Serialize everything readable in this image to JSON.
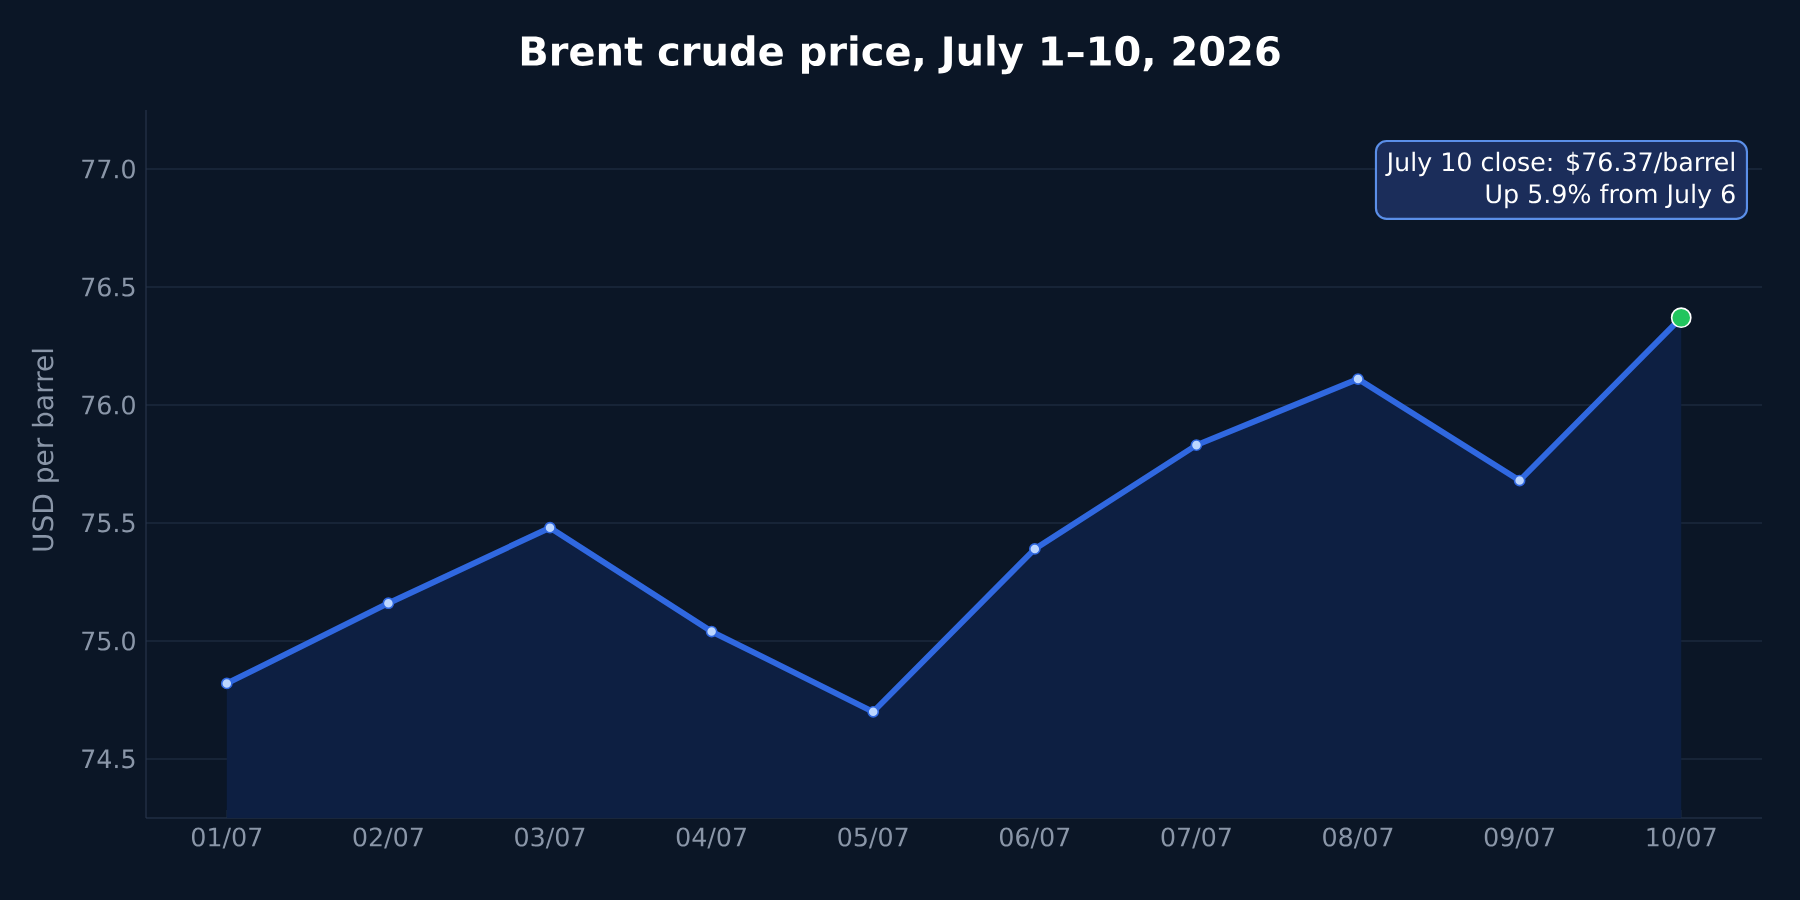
{
  "chart_data": {
    "type": "area",
    "title": "Brent crude price, July 1–10, 2026",
    "ylabel": "USD per barrel",
    "categories": [
      "01/07",
      "02/07",
      "03/07",
      "04/07",
      "05/07",
      "06/07",
      "07/07",
      "08/07",
      "09/07",
      "10/07"
    ],
    "series": [
      {
        "color": "#3068e0",
        "values": [
          74.82,
          75.16,
          75.48,
          75.04,
          74.7,
          75.39,
          75.83,
          76.11,
          75.68,
          76.37
        ],
        "colors": [
          "#bcd6ff",
          "#bcd6ff",
          "#bcd6ff",
          "#bcd6ff",
          "#bcd6ff",
          "#bcd6ff",
          "#bcd6ff",
          "#bcd6ff",
          "#bcd6ff",
          "#22c55e"
        ]
      }
    ],
    "ylim": [
      74.25,
      77.25
    ],
    "yticks": [
      {
        "value": 74.5,
        "label": "74.5"
      },
      {
        "value": 75.0,
        "label": "75.0"
      },
      {
        "value": 75.5,
        "label": "75.5"
      },
      {
        "value": 76.0,
        "label": "76.0"
      },
      {
        "value": 76.5,
        "label": "76.5"
      },
      {
        "value": 77.0,
        "label": "77.0"
      }
    ],
    "annotations": [
      "July 10 close: $76.37/barrel",
      "Up 5.9% from July 6"
    ],
    "grid": "y",
    "marker": "circle",
    "line_style": "solid"
  }
}
